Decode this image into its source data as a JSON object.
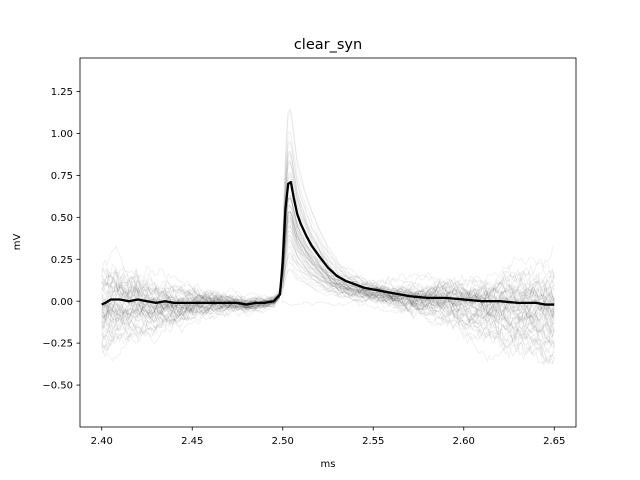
{
  "chart_data": {
    "type": "line",
    "title": "clear_syn",
    "xlabel": "ms",
    "ylabel": "mV",
    "xlim": [
      2.388,
      2.662
    ],
    "ylim": [
      -0.75,
      1.45
    ],
    "xticks": [
      "2.40",
      "2.45",
      "2.50",
      "2.55",
      "2.60",
      "2.65"
    ],
    "yticks": [
      "−0.50",
      "−0.25",
      "0.00",
      "0.25",
      "0.50",
      "0.75",
      "1.00",
      "1.25"
    ],
    "grid": false,
    "trial_color": "#000000",
    "trial_alpha": 0.06,
    "mean_color": "#000000",
    "mean": {
      "x": [
        2.4,
        2.402,
        2.405,
        2.41,
        2.415,
        2.42,
        2.425,
        2.43,
        2.435,
        2.44,
        2.445,
        2.45,
        2.455,
        2.46,
        2.465,
        2.47,
        2.475,
        2.48,
        2.485,
        2.49,
        2.495,
        2.4985,
        2.5,
        2.5015,
        2.503,
        2.5045,
        2.506,
        2.508,
        2.51,
        2.513,
        2.516,
        2.52,
        2.525,
        2.53,
        2.535,
        2.54,
        2.545,
        2.55,
        2.56,
        2.57,
        2.58,
        2.59,
        2.6,
        2.61,
        2.62,
        2.63,
        2.64,
        2.645,
        2.65
      ],
      "y": [
        -0.02,
        -0.01,
        0.01,
        0.01,
        0.0,
        0.01,
        0.0,
        -0.01,
        0.0,
        -0.01,
        -0.01,
        -0.01,
        -0.01,
        -0.01,
        -0.01,
        -0.01,
        -0.01,
        -0.02,
        -0.01,
        -0.01,
        0.0,
        0.04,
        0.24,
        0.55,
        0.7,
        0.71,
        0.62,
        0.52,
        0.46,
        0.39,
        0.33,
        0.27,
        0.2,
        0.15,
        0.12,
        0.1,
        0.08,
        0.07,
        0.05,
        0.03,
        0.02,
        0.02,
        0.01,
        0.0,
        0.0,
        -0.01,
        -0.01,
        -0.02,
        -0.02
      ]
    }
  }
}
